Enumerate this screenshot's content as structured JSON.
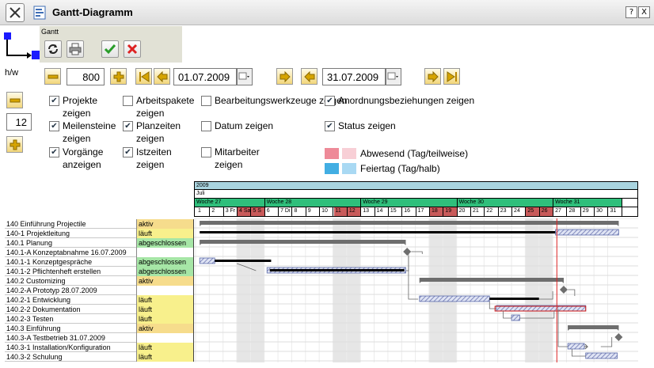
{
  "window": {
    "title": "Gantt-Diagramm",
    "help_label": "?",
    "close_label": "X"
  },
  "toolbar": {
    "group_label": "Gantt"
  },
  "controls": {
    "hw_label": "h/w",
    "width_value": "800",
    "height_value": "12",
    "start_date": "01.07.2009",
    "end_date": "31.07.2009"
  },
  "options": [
    {
      "label": "Projekte zeigen",
      "checked": true
    },
    {
      "label": "Meilensteine zeigen",
      "checked": true
    },
    {
      "label": "Vorgänge anzeigen",
      "checked": true
    },
    {
      "label": "Arbeitspakete zeigen",
      "checked": false
    },
    {
      "label": "Planzeiten zeigen",
      "checked": true
    },
    {
      "label": "Istzeiten zeigen",
      "checked": true
    },
    {
      "label": "Bearbeitungswerkzeuge zeigen",
      "checked": false
    },
    {
      "label": "Datum zeigen",
      "checked": false
    },
    {
      "label": "Mitarbeiter zeigen",
      "checked": false
    },
    {
      "label": "Anordnungsbeziehungen zeigen",
      "checked": true
    },
    {
      "label": "Status zeigen",
      "checked": true
    }
  ],
  "legend": [
    {
      "label": "Abwesend (Tag/teilweise)",
      "color_full": "#ee8a98",
      "color_half": "#f8cfd6"
    },
    {
      "label": "Feiertag (Tag/halb)",
      "color_full": "#42aee3",
      "color_half": "#a9d9f3"
    }
  ],
  "timeline": {
    "year": "2009",
    "month": "Juli",
    "weeks": [
      "Woche 27",
      "Woche 28",
      "Woche 29",
      "Woche 30",
      "Woche 31"
    ],
    "days": [
      "1",
      "2",
      "3 Fr",
      "4 Sa",
      "5 S",
      "6",
      "7 Di",
      "8",
      "9",
      "10",
      "11",
      "12",
      "13",
      "14",
      "15",
      "16",
      "17",
      "18",
      "19",
      "20",
      "21",
      "22",
      "23",
      "24",
      "25",
      "26",
      "27",
      "28",
      "29",
      "30",
      "31"
    ],
    "weekend_days": [
      4,
      5,
      11,
      12,
      18,
      19,
      25,
      26
    ],
    "today_day": 27.3,
    "week_colors": {
      "normal": "#ffffff",
      "weekend": "#c85a5a",
      "header": "#2fbf7b",
      "year": "#a9d4df"
    }
  },
  "tasks": [
    {
      "name": "140 Einführung Projectile",
      "status": "aktiv",
      "status_color": "#f6dc8c"
    },
    {
      "name": "140-1 Projektleitung",
      "status": "läuft",
      "status_color": "#f8f08c"
    },
    {
      "name": "140.1 Planung",
      "status": "abgeschlossen",
      "status_color": "#a6e6a6"
    },
    {
      "name": "140.1-A Konzeptabnahme 16.07.2009",
      "status": "",
      "status_color": "#ffffff"
    },
    {
      "name": "140.1-1 Konzeptgespräche",
      "status": "abgeschlossen",
      "status_color": "#a6e6a6"
    },
    {
      "name": "140.1-2 Pflichtenheft erstellen",
      "status": "abgeschlossen",
      "status_color": "#a6e6a6"
    },
    {
      "name": "140.2 Customizing",
      "status": "aktiv",
      "status_color": "#f6dc8c"
    },
    {
      "name": "140.2-A Prototyp 28.07.2009",
      "status": "",
      "status_color": "#ffffff"
    },
    {
      "name": "140.2-1 Entwicklung",
      "status": "läuft",
      "status_color": "#f8f08c"
    },
    {
      "name": "140.2-2 Dokumentation",
      "status": "läuft",
      "status_color": "#f8f08c"
    },
    {
      "name": "140.2-3 Testen",
      "status": "läuft",
      "status_color": "#f8f08c"
    },
    {
      "name": "140.3 Einführung",
      "status": "aktiv",
      "status_color": "#f6dc8c"
    },
    {
      "name": "140.3-A Testbetrieb 31.07.2009",
      "status": "",
      "status_color": "#ffffff"
    },
    {
      "name": "140.3-1 Installation/Konfiguration",
      "status": "läuft",
      "status_color": "#f8f08c"
    },
    {
      "name": "140.3-2 Schulung",
      "status": "läuft",
      "status_color": "#f8f08c"
    }
  ]
}
